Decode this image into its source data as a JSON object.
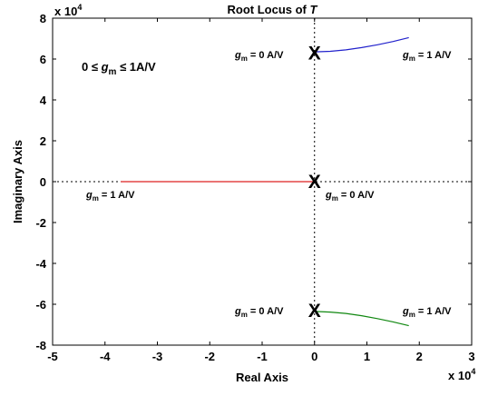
{
  "chart_data": {
    "type": "line",
    "title": {
      "prefix": "Root Locus of ",
      "var": "T"
    },
    "xlabel": "Real Axis",
    "ylabel": "Imaginary Axis",
    "xlim": [
      -5,
      3
    ],
    "ylim": [
      -8,
      8
    ],
    "x_ticks": [
      -5,
      -4,
      -3,
      -2,
      -1,
      0,
      1,
      2,
      3
    ],
    "y_ticks": [
      -8,
      -6,
      -4,
      -2,
      0,
      2,
      4,
      6,
      8
    ],
    "x_ticklabels": [
      "-5",
      "-4",
      "-3",
      "-2",
      "-1",
      "0",
      "1",
      "2",
      "3"
    ],
    "y_ticklabels": [
      "-8",
      "-6",
      "-4",
      "-2",
      "0",
      "2",
      "4",
      "6",
      "8"
    ],
    "x_exponent": {
      "base": "x 10",
      "exp": "4"
    },
    "y_exponent": {
      "base": "x 10",
      "exp": "4"
    },
    "grid": false,
    "crosshair_at_origin": true,
    "poles": [
      {
        "x": 0,
        "y": 6.3
      },
      {
        "x": 0,
        "y": 0
      },
      {
        "x": 0,
        "y": -6.3
      }
    ],
    "pole_marker": "X",
    "series": [
      {
        "color": "#2222cc",
        "x": [
          0,
          0.3,
          0.6,
          0.9,
          1.2,
          1.5,
          1.8
        ],
        "y": [
          6.35,
          6.38,
          6.45,
          6.56,
          6.7,
          6.86,
          7.05
        ]
      },
      {
        "color": "#dd2222",
        "x": [
          -3.7,
          -3.0,
          -2.0,
          -1.0,
          0
        ],
        "y": [
          0,
          0,
          0,
          0,
          0
        ]
      },
      {
        "color": "#118811",
        "x": [
          0,
          0.3,
          0.6,
          0.9,
          1.2,
          1.5,
          1.8
        ],
        "y": [
          -6.35,
          -6.38,
          -6.45,
          -6.56,
          -6.7,
          -6.86,
          -7.05
        ]
      }
    ],
    "range_note": {
      "prefix": "0 ≤ ",
      "var": "g",
      "sub": "m",
      "suffix": " ≤ 1A/V"
    },
    "annotations": [
      {
        "var": "g",
        "sub": "m",
        "text": " = 0 A/V"
      },
      {
        "var": "g",
        "sub": "m",
        "text": " = 1 A/V"
      },
      {
        "var": "g",
        "sub": "m",
        "text": " = 1 A/V"
      },
      {
        "var": "g",
        "sub": "m",
        "text": " = 0 A/V"
      },
      {
        "var": "g",
        "sub": "m",
        "text": " = 0 A/V"
      },
      {
        "var": "g",
        "sub": "m",
        "text": " = 1 A/V"
      }
    ]
  }
}
